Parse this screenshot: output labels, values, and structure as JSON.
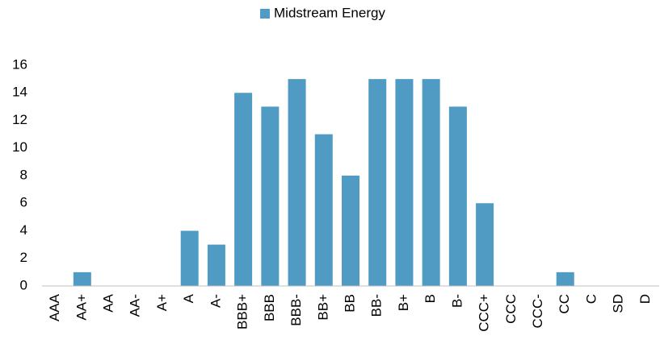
{
  "chart_data": {
    "type": "bar",
    "categories": [
      "AAA",
      "AA+",
      "AA",
      "AA-",
      "A+",
      "A",
      "A-",
      "BBB+",
      "BBB",
      "BBB-",
      "BB+",
      "BB",
      "BB-",
      "B+",
      "B",
      "B-",
      "CCC+",
      "CCC",
      "CCC-",
      "CC",
      "C",
      "SD",
      "D"
    ],
    "series": [
      {
        "name": "Midstream Energy",
        "color": "#4f9bc4",
        "values": [
          0,
          1,
          0,
          0,
          0,
          4,
          3,
          14,
          13,
          15,
          11,
          8,
          15,
          15,
          15,
          13,
          6,
          0,
          0,
          1,
          0,
          0,
          0
        ]
      }
    ],
    "ylim": [
      0,
      16
    ],
    "yticks": [
      0,
      2,
      4,
      6,
      8,
      10,
      12,
      14,
      16
    ],
    "grid": false,
    "legend": "top"
  }
}
